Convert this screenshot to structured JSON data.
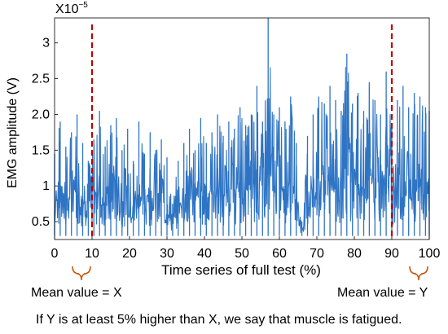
{
  "chart_data": {
    "type": "line",
    "title": "",
    "xlabel": "Time series of full test (%)",
    "ylabel": "EMG amplitude (V)",
    "y_multiplier": "X10",
    "y_multiplier_exponent": "−5",
    "xlim": [
      0,
      100
    ],
    "ylim": [
      0.25,
      3.35
    ],
    "xticks": [
      0,
      10,
      20,
      30,
      40,
      50,
      60,
      70,
      80,
      90,
      100
    ],
    "yticks": [
      0.5,
      1,
      1.5,
      2,
      2.5,
      3
    ],
    "ytick_labels": [
      "0.5",
      "1",
      "1.5",
      "2.0",
      "2.5",
      "3"
    ],
    "grid": false,
    "series": [
      {
        "color": "#2e74c4",
        "x": [
          0,
          1.5,
          3,
          4.5,
          6,
          7.5,
          9,
          10.5,
          12,
          13.5,
          15,
          16.5,
          18,
          19.5,
          21,
          22.5,
          24,
          25.5,
          27,
          28.5,
          30,
          31.5,
          33,
          34.5,
          36,
          37.5,
          39,
          40.5,
          42,
          43.5,
          45,
          46.5,
          48,
          49.5,
          51,
          52.5,
          54,
          55.5,
          57,
          58.5,
          60,
          61.5,
          63,
          64.5,
          66,
          67.5,
          69,
          70.5,
          72,
          73.5,
          75,
          76.5,
          78,
          79.5,
          81,
          82.5,
          84,
          85.5,
          87,
          88.5,
          90,
          91.5,
          93,
          94.5,
          96,
          97.5,
          99,
          100
        ],
        "values": [
          1.45,
          1.9,
          1.55,
          1.75,
          2.0,
          1.6,
          1.35,
          1.65,
          2.05,
          1.55,
          1.85,
          1.95,
          1.5,
          1.8,
          1.35,
          1.9,
          1.45,
          1.75,
          1.5,
          1.65,
          1.4,
          0.75,
          1.35,
          1.6,
          1.8,
          1.5,
          1.95,
          1.6,
          1.75,
          2.0,
          1.7,
          1.9,
          1.8,
          2.1,
          1.85,
          2.0,
          2.4,
          1.9,
          3.35,
          2.0,
          2.1,
          1.9,
          2.25,
          1.6,
          0.5,
          1.7,
          2.0,
          2.25,
          2.15,
          2.4,
          2.2,
          2.05,
          2.85,
          2.15,
          2.3,
          2.05,
          2.45,
          2.2,
          2.0,
          2.6,
          1.8,
          2.2,
          2.4,
          2.1,
          2.3,
          2.25,
          2.1,
          2.05
        ]
      }
    ],
    "reference_lines": [
      {
        "x": 10,
        "color": "#c00000",
        "style": "dashed"
      },
      {
        "x": 90,
        "color": "#c00000",
        "style": "dashed"
      }
    ],
    "annotations": [
      {
        "text": "Mean value = X",
        "span": [
          0,
          10
        ]
      },
      {
        "text": "Mean value = Y",
        "span": [
          90,
          100
        ]
      }
    ],
    "note": "If Y is at least 5% higher than X, we say that muscle is fatigued."
  }
}
